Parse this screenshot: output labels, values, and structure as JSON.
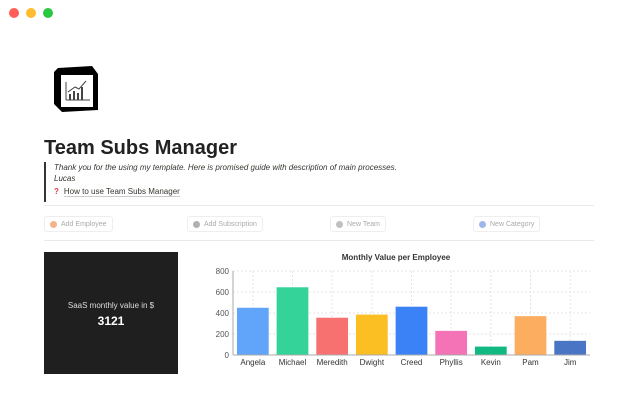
{
  "window": {
    "controls": [
      "close",
      "minimize",
      "maximize"
    ],
    "colors": [
      "#ff5f57",
      "#febc2e",
      "#28c840"
    ]
  },
  "page": {
    "icon": "chart-cube-icon",
    "title": "Team Subs Manager",
    "quote_line1": "Thank you for the using my template. Here is promised guide with description of main processes.",
    "quote_line2": "Lucas",
    "link_icon": "question-mark-icon",
    "link_label": "How to use Team Subs Manager"
  },
  "buttons": [
    {
      "label": "Add Employee",
      "icon_color": "#f5b38a"
    },
    {
      "label": "Add Subscription",
      "icon_color": "#b0b0b0"
    },
    {
      "label": "New Team",
      "icon_color": "#c0c0c0"
    },
    {
      "label": "New Category",
      "icon_color": "#9fb6e8"
    }
  ],
  "card": {
    "label": "SaaS monthly value in $",
    "value": "3121"
  },
  "chart_data": {
    "type": "bar",
    "title": "Monthly Value per Employee",
    "categories": [
      "Angela",
      "Michael",
      "Meredith",
      "Dwight",
      "Creed",
      "Phyllis",
      "Kevin",
      "Pam",
      "Jim"
    ],
    "values": [
      450,
      645,
      355,
      385,
      460,
      230,
      80,
      370,
      135
    ],
    "colors": [
      "#60a5fa",
      "#34d399",
      "#f87171",
      "#fbbf24",
      "#3b82f6",
      "#f472b6",
      "#10b981",
      "#fdad60",
      "#4a74c4"
    ],
    "ylim": [
      0,
      800
    ],
    "yticks": [
      0,
      200,
      400,
      600,
      800
    ],
    "grid": true,
    "legend": "none"
  }
}
